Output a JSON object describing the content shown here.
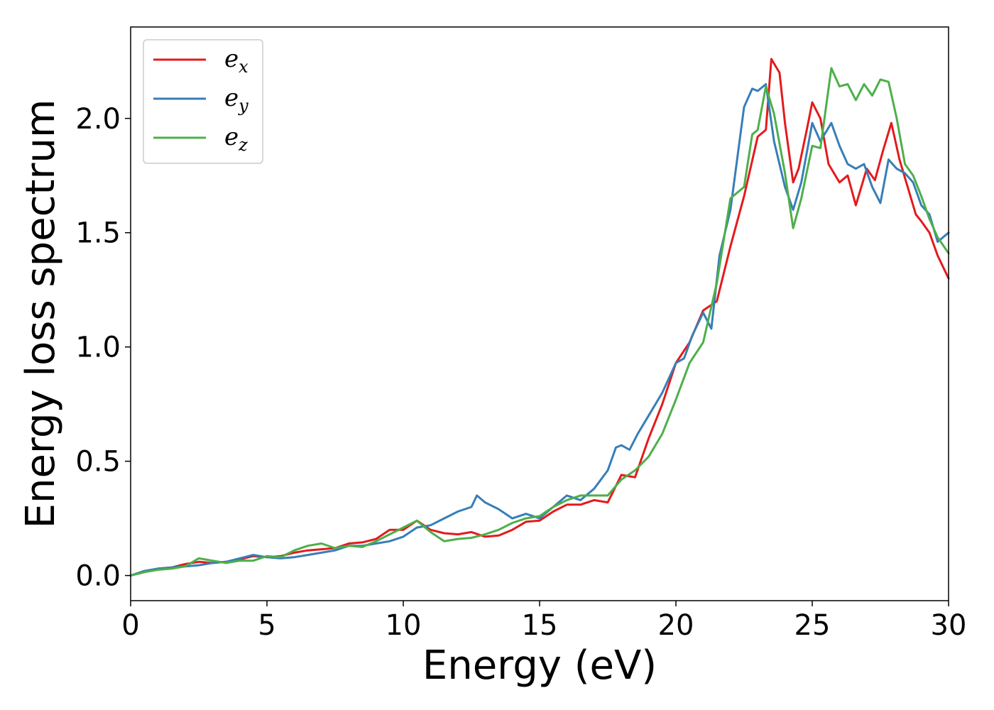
{
  "chart_data": {
    "type": "line",
    "xlabel": "Energy (eV)",
    "ylabel": "Energy loss spectrum",
    "xlim": [
      0,
      30
    ],
    "ylim": [
      -0.11,
      2.4
    ],
    "xticks": [
      0,
      5,
      10,
      15,
      20,
      25,
      30
    ],
    "yticks": [
      0.0,
      0.5,
      1.0,
      1.5,
      2.0
    ],
    "xtick_labels": [
      "0",
      "5",
      "10",
      "15",
      "20",
      "25",
      "30"
    ],
    "ytick_labels": [
      "0.0",
      "0.5",
      "1.0",
      "1.5",
      "2.0"
    ],
    "grid": false,
    "legend_position": "top-left",
    "series": [
      {
        "name": "e_x",
        "legend_base": "e",
        "legend_sub": "x",
        "color": "#e41a1c",
        "x": [
          0,
          0.5,
          1,
          1.5,
          2,
          2.5,
          3,
          3.5,
          4,
          4.5,
          5,
          5.5,
          6,
          6.5,
          7,
          7.5,
          8,
          8.5,
          9,
          9.5,
          10,
          10.5,
          11,
          11.5,
          12,
          12.5,
          13,
          13.5,
          14,
          14.5,
          15,
          15.5,
          16,
          16.5,
          17,
          17.5,
          18,
          18.5,
          19,
          19.5,
          20,
          20.5,
          21,
          21.5,
          22,
          22.5,
          23,
          23.3,
          23.5,
          23.8,
          24,
          24.3,
          24.5,
          24.8,
          25,
          25.3,
          25.6,
          26,
          26.3,
          26.6,
          27,
          27.3,
          27.6,
          27.9,
          28.2,
          28.5,
          28.8,
          29,
          29.3,
          29.6,
          30
        ],
        "y": [
          0,
          0.015,
          0.03,
          0.035,
          0.05,
          0.06,
          0.055,
          0.06,
          0.07,
          0.085,
          0.08,
          0.085,
          0.1,
          0.11,
          0.115,
          0.12,
          0.14,
          0.145,
          0.16,
          0.2,
          0.2,
          0.24,
          0.2,
          0.185,
          0.18,
          0.19,
          0.17,
          0.175,
          0.2,
          0.235,
          0.24,
          0.28,
          0.31,
          0.31,
          0.33,
          0.32,
          0.44,
          0.43,
          0.6,
          0.75,
          0.93,
          1.02,
          1.16,
          1.2,
          1.44,
          1.66,
          1.92,
          1.95,
          2.26,
          2.2,
          1.98,
          1.72,
          1.78,
          1.95,
          2.07,
          2.0,
          1.8,
          1.72,
          1.75,
          1.62,
          1.78,
          1.73,
          1.86,
          1.98,
          1.82,
          1.7,
          1.58,
          1.55,
          1.5,
          1.4,
          1.3
        ]
      },
      {
        "name": "e_y",
        "legend_base": "e",
        "legend_sub": "y",
        "color": "#377eb8",
        "x": [
          0,
          0.5,
          1,
          1.5,
          2,
          2.5,
          3,
          3.5,
          4,
          4.5,
          5,
          5.5,
          6,
          6.5,
          7,
          7.5,
          8,
          8.5,
          9,
          9.5,
          10,
          10.5,
          11,
          11.5,
          12,
          12.5,
          12.7,
          13,
          13.5,
          14,
          14.5,
          15,
          15.5,
          16,
          16.5,
          17,
          17.5,
          17.8,
          18,
          18.3,
          18.6,
          19,
          19.5,
          20,
          20.3,
          20.6,
          21,
          21.3,
          21.6,
          22,
          22.5,
          22.8,
          23,
          23.3,
          23.6,
          24,
          24.3,
          24.6,
          25,
          25.3,
          25.7,
          26,
          26.3,
          26.6,
          26.9,
          27.2,
          27.5,
          27.8,
          28.1,
          28.4,
          28.7,
          29,
          29.3,
          29.6,
          30
        ],
        "y": [
          0,
          0.02,
          0.03,
          0.035,
          0.04,
          0.045,
          0.055,
          0.06,
          0.075,
          0.09,
          0.08,
          0.075,
          0.08,
          0.09,
          0.1,
          0.11,
          0.13,
          0.13,
          0.14,
          0.15,
          0.17,
          0.21,
          0.22,
          0.25,
          0.28,
          0.3,
          0.35,
          0.32,
          0.29,
          0.25,
          0.27,
          0.25,
          0.3,
          0.35,
          0.33,
          0.38,
          0.46,
          0.56,
          0.57,
          0.55,
          0.62,
          0.7,
          0.8,
          0.93,
          0.95,
          1.05,
          1.15,
          1.08,
          1.4,
          1.6,
          2.05,
          2.13,
          2.12,
          2.15,
          1.9,
          1.7,
          1.6,
          1.72,
          1.98,
          1.9,
          1.98,
          1.88,
          1.8,
          1.78,
          1.8,
          1.7,
          1.63,
          1.82,
          1.78,
          1.76,
          1.72,
          1.62,
          1.58,
          1.46,
          1.5
        ]
      },
      {
        "name": "e_z",
        "legend_base": "e",
        "legend_sub": "z",
        "color": "#4daf4a",
        "x": [
          0,
          0.5,
          1,
          1.5,
          2,
          2.5,
          3,
          3.5,
          4,
          4.5,
          5,
          5.5,
          6,
          6.5,
          7,
          7.5,
          8,
          8.5,
          9,
          9.5,
          10,
          10.5,
          11,
          11.5,
          12,
          12.5,
          13,
          13.5,
          14,
          14.5,
          15,
          15.5,
          16,
          16.5,
          17,
          17.5,
          18,
          18.5,
          19,
          19.5,
          20,
          20.5,
          21,
          21.5,
          22,
          22.5,
          22.8,
          23,
          23.3,
          23.6,
          24,
          24.3,
          24.6,
          25,
          25.3,
          25.7,
          26,
          26.3,
          26.6,
          26.9,
          27.2,
          27.5,
          27.8,
          28.1,
          28.4,
          28.7,
          29,
          29.3,
          29.6,
          30
        ],
        "y": [
          0,
          0.015,
          0.025,
          0.03,
          0.04,
          0.075,
          0.065,
          0.055,
          0.065,
          0.065,
          0.085,
          0.08,
          0.11,
          0.13,
          0.14,
          0.12,
          0.13,
          0.125,
          0.15,
          0.18,
          0.21,
          0.24,
          0.19,
          0.15,
          0.16,
          0.165,
          0.18,
          0.2,
          0.23,
          0.25,
          0.26,
          0.3,
          0.33,
          0.35,
          0.35,
          0.35,
          0.42,
          0.46,
          0.52,
          0.62,
          0.77,
          0.93,
          1.02,
          1.28,
          1.65,
          1.7,
          1.93,
          1.95,
          2.14,
          2.02,
          1.76,
          1.52,
          1.65,
          1.88,
          1.87,
          2.22,
          2.14,
          2.15,
          2.08,
          2.15,
          2.1,
          2.17,
          2.16,
          2.0,
          1.8,
          1.75,
          1.66,
          1.56,
          1.48,
          1.41
        ]
      }
    ]
  }
}
